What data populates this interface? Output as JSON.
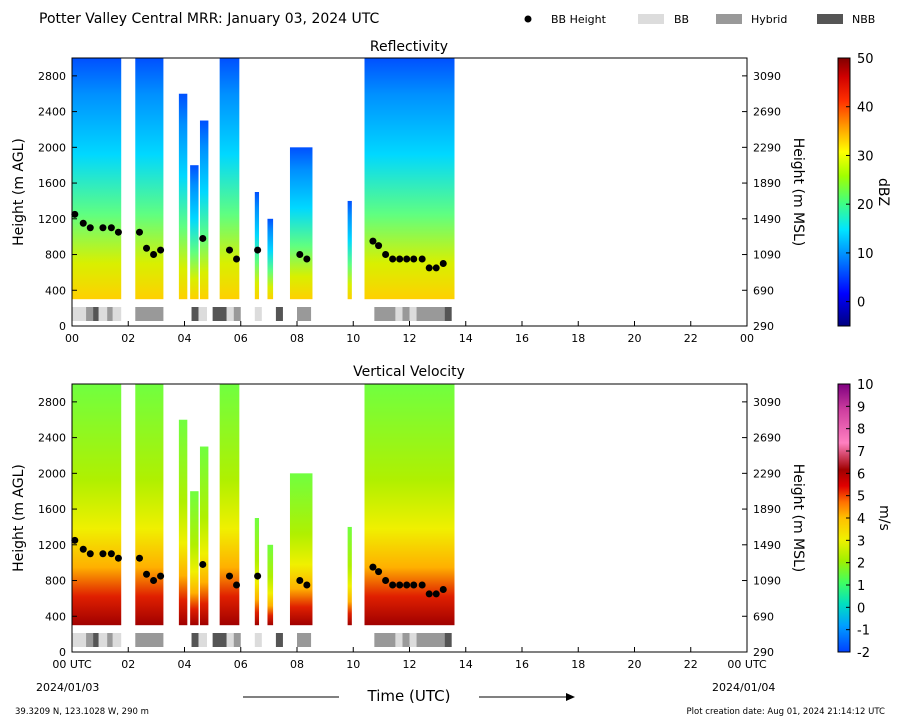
{
  "header": {
    "title": "Potter Valley Central MRR:  January 03, 2024 UTC",
    "legend": [
      {
        "label": "BB Height",
        "kind": "dot",
        "color": "#000000"
      },
      {
        "label": "BB",
        "kind": "bar",
        "color": "#dcdcdc"
      },
      {
        "label": "Hybrid",
        "kind": "bar",
        "color": "#999999"
      },
      {
        "label": "NBB",
        "kind": "bar",
        "color": "#555555"
      }
    ]
  },
  "footer": {
    "location": "39.3209 N, 123.1028 W, 290 m",
    "creation": "Plot creation date: Aug 01, 2024 21:14:12 UTC",
    "start_time": "00 UTC",
    "start_date": "2024/01/03",
    "end_time": "00 UTC",
    "end_date": "2024/01/04"
  },
  "chart_data": [
    {
      "type": "heatmap",
      "title": "Reflectivity",
      "xlabel": "Time (UTC)",
      "ylabel": "Height (m AGL)",
      "y2label": "Height (m MSL)",
      "xlim": [
        0,
        24
      ],
      "ylim": [
        0,
        3000
      ],
      "x_ticks": [
        "00",
        "02",
        "04",
        "06",
        "08",
        "10",
        "12",
        "14",
        "16",
        "18",
        "20",
        "22",
        "00"
      ],
      "y_ticks": [
        "0",
        "400",
        "800",
        "1200",
        "1600",
        "2000",
        "2400",
        "2800"
      ],
      "y2_ticks": [
        "290",
        "690",
        "1090",
        "1490",
        "1890",
        "2290",
        "2690",
        "3090"
      ],
      "colorbar": {
        "label": "dBZ",
        "min": -5,
        "max": 50,
        "ticks": [
          "0",
          "10",
          "20",
          "30",
          "40",
          "50"
        ],
        "colors": [
          "#00007f",
          "#0000ff",
          "#0080ff",
          "#00e5ff",
          "#40ff80",
          "#a0ff00",
          "#ffff00",
          "#ffa000",
          "#ff3000",
          "#d00000",
          "#800000"
        ]
      },
      "bb_height": [
        [
          0.1,
          1250
        ],
        [
          0.4,
          1150
        ],
        [
          0.65,
          1100
        ],
        [
          1.1,
          1100
        ],
        [
          1.4,
          1100
        ],
        [
          1.65,
          1050
        ],
        [
          2.4,
          1050
        ],
        [
          2.65,
          870
        ],
        [
          2.9,
          800
        ],
        [
          3.15,
          850
        ],
        [
          4.65,
          980
        ],
        [
          5.6,
          850
        ],
        [
          5.85,
          750
        ],
        [
          6.6,
          850
        ],
        [
          8.1,
          800
        ],
        [
          8.35,
          750
        ],
        [
          10.7,
          950
        ],
        [
          10.9,
          900
        ],
        [
          11.15,
          800
        ],
        [
          11.4,
          750
        ],
        [
          11.65,
          750
        ],
        [
          11.9,
          750
        ],
        [
          12.15,
          750
        ],
        [
          12.45,
          750
        ],
        [
          12.7,
          650
        ],
        [
          12.95,
          650
        ],
        [
          13.2,
          700
        ]
      ],
      "bb_type_segments": [
        {
          "start": 0.0,
          "end": 0.5,
          "type": "BB"
        },
        {
          "start": 0.5,
          "end": 0.75,
          "type": "Hybrid"
        },
        {
          "start": 0.75,
          "end": 0.95,
          "type": "NBB"
        },
        {
          "start": 0.95,
          "end": 1.25,
          "type": "BB"
        },
        {
          "start": 1.25,
          "end": 1.45,
          "type": "Hybrid"
        },
        {
          "start": 1.45,
          "end": 1.75,
          "type": "BB"
        },
        {
          "start": 2.25,
          "end": 3.25,
          "type": "Hybrid"
        },
        {
          "start": 4.25,
          "end": 4.5,
          "type": "NBB"
        },
        {
          "start": 4.5,
          "end": 4.8,
          "type": "BB"
        },
        {
          "start": 5.0,
          "end": 5.5,
          "type": "NBB"
        },
        {
          "start": 5.5,
          "end": 5.75,
          "type": "BB"
        },
        {
          "start": 5.75,
          "end": 6.0,
          "type": "Hybrid"
        },
        {
          "start": 6.5,
          "end": 6.75,
          "type": "BB"
        },
        {
          "start": 7.25,
          "end": 7.5,
          "type": "NBB"
        },
        {
          "start": 8.0,
          "end": 8.5,
          "type": "Hybrid"
        },
        {
          "start": 10.75,
          "end": 11.5,
          "type": "Hybrid"
        },
        {
          "start": 11.5,
          "end": 11.75,
          "type": "BB"
        },
        {
          "start": 11.75,
          "end": 12.0,
          "type": "Hybrid"
        },
        {
          "start": 12.0,
          "end": 12.25,
          "type": "BB"
        },
        {
          "start": 12.25,
          "end": 13.25,
          "type": "Hybrid"
        },
        {
          "start": 13.25,
          "end": 13.5,
          "type": "NBB"
        }
      ]
    },
    {
      "type": "heatmap",
      "title": "Vertical Velocity",
      "xlabel": "Time (UTC)",
      "ylabel": "Height (m AGL)",
      "y2label": "Height (m MSL)",
      "xlim": [
        0,
        24
      ],
      "ylim": [
        0,
        3000
      ],
      "x_ticks": [
        "00",
        "02",
        "04",
        "06",
        "08",
        "10",
        "12",
        "14",
        "16",
        "18",
        "20",
        "22"
      ],
      "y_ticks": [
        "0",
        "400",
        "800",
        "1200",
        "1600",
        "2000",
        "2400",
        "2800"
      ],
      "y2_ticks": [
        "290",
        "690",
        "1090",
        "1490",
        "1890",
        "2290",
        "2690",
        "3090"
      ],
      "colorbar": {
        "label": "m/s",
        "min": -2,
        "max": 10,
        "ticks": [
          "-2",
          "-1",
          "0",
          "1",
          "2",
          "3",
          "4",
          "5",
          "6",
          "7",
          "8",
          "9",
          "10"
        ],
        "colors": [
          "#0040ff",
          "#00a0ff",
          "#00e0c0",
          "#40ff60",
          "#a0f000",
          "#f0f000",
          "#ffc000",
          "#ff7000",
          "#e00000",
          "#a00000",
          "#ff80c0",
          "#d040a0",
          "#800080"
        ]
      }
    }
  ],
  "precip_blocks": [
    {
      "start": 0.0,
      "end": 1.75,
      "top": 3000
    },
    {
      "start": 2.25,
      "end": 3.25,
      "top": 3000
    },
    {
      "start": 3.8,
      "end": 4.1,
      "top": 2600
    },
    {
      "start": 4.2,
      "end": 4.5,
      "top": 1800
    },
    {
      "start": 4.55,
      "end": 4.85,
      "top": 2300
    },
    {
      "start": 5.25,
      "end": 5.95,
      "top": 3000
    },
    {
      "start": 6.5,
      "end": 6.65,
      "top": 1500
    },
    {
      "start": 6.95,
      "end": 7.15,
      "top": 1200
    },
    {
      "start": 7.75,
      "end": 8.55,
      "top": 2000
    },
    {
      "start": 9.8,
      "end": 9.95,
      "top": 1400
    },
    {
      "start": 10.4,
      "end": 13.6,
      "top": 3000
    }
  ]
}
